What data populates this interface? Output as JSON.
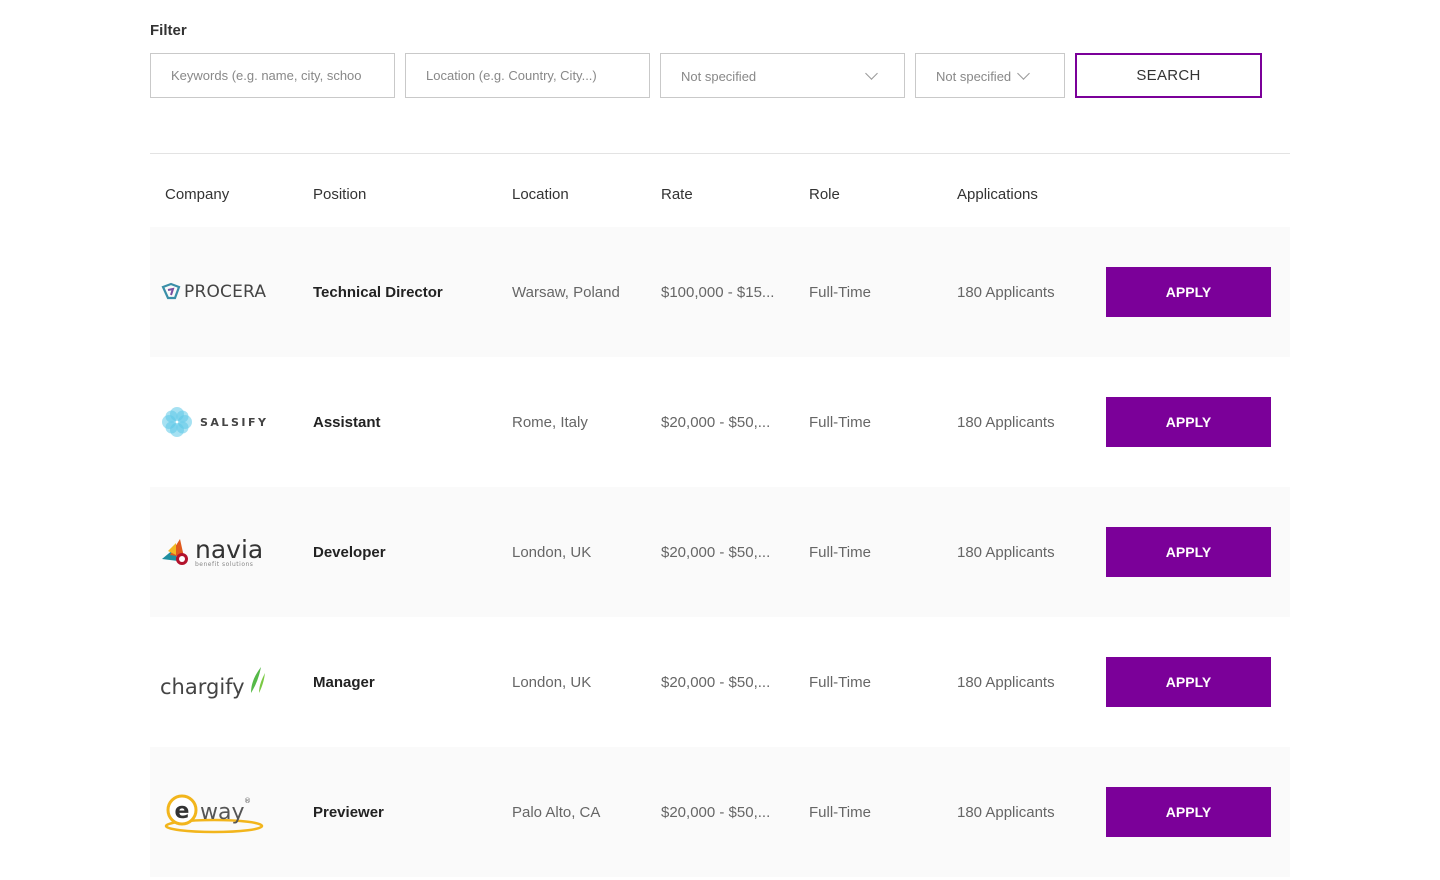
{
  "filter": {
    "label": "Filter",
    "keywords_placeholder": "Keywords (e.g. name, city, schoo",
    "location_placeholder": "Location (e.g. Country, City...)",
    "select1_value": "Not specified",
    "select2_value": "Not specified",
    "search_label": "SEARCH"
  },
  "table": {
    "headers": {
      "company": "Company",
      "position": "Position",
      "location": "Location",
      "rate": "Rate",
      "role": "Role",
      "applications": "Applications"
    },
    "rows": [
      {
        "company": "PROCERA",
        "position": "Technical Director",
        "location": "Warsaw, Poland",
        "rate": "$100,000 - $15...",
        "role": "Full-Time",
        "applications": "180 Applicants",
        "action": "APPLY"
      },
      {
        "company": "SALSIFY",
        "position": "Assistant",
        "location": "Rome, Italy",
        "rate": "$20,000 - $50,...",
        "role": "Full-Time",
        "applications": "180 Applicants",
        "action": "APPLY"
      },
      {
        "company": "navia",
        "company_tagline": "benefit solutions",
        "position": "Developer",
        "location": "London, UK",
        "rate": "$20,000 - $50,...",
        "role": "Full-Time",
        "applications": "180 Applicants",
        "action": "APPLY"
      },
      {
        "company": "chargify",
        "position": "Manager",
        "location": "London, UK",
        "rate": "$20,000 - $50,...",
        "role": "Full-Time",
        "applications": "180 Applicants",
        "action": "APPLY"
      },
      {
        "company": "eway",
        "position": "Previewer",
        "location": "Palo Alto, CA",
        "rate": "$20,000 - $50,...",
        "role": "Full-Time",
        "applications": "180 Applicants",
        "action": "APPLY"
      }
    ]
  },
  "colors": {
    "accent": "#7b0099",
    "row_shade": "#fafafa"
  }
}
